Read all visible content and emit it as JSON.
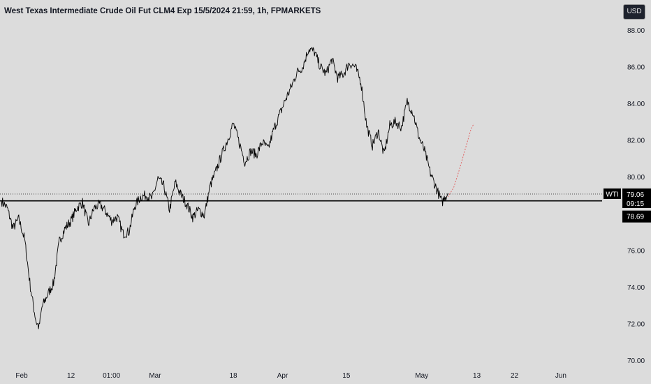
{
  "header": {
    "title": "West Texas Intermediate Crude Oil Fut CLM4 Exp 15/5/2024 21:59, 1h, FPMARKETS",
    "currency_button": "USD"
  },
  "colors": {
    "background": "#dcdcdc",
    "price_line": "#000000",
    "projection_line": "#e06666",
    "horizontal_level": "#000000",
    "label_bg": "#000000",
    "label_text": "#ffffff"
  },
  "chart_data": {
    "type": "line",
    "title": "West Texas Intermediate Crude Oil Fut CLM4 Exp 15/5/2024 21:59, 1h, FPMARKETS",
    "ylim": [
      70,
      88
    ],
    "y_ticks": [
      "70.00",
      "72.00",
      "74.00",
      "76.00",
      "78.00",
      "80.00",
      "82.00",
      "84.00",
      "86.00",
      "88.00"
    ],
    "x_ticks": [
      {
        "label": "Feb",
        "t": 7
      },
      {
        "label": "12",
        "t": 24
      },
      {
        "label": "01:00",
        "t": 38
      },
      {
        "label": "Mar",
        "t": 53
      },
      {
        "label": "18",
        "t": 80
      },
      {
        "label": "Apr",
        "t": 97
      },
      {
        "label": "15",
        "t": 119
      },
      {
        "label": "May",
        "t": 145
      },
      {
        "label": "13",
        "t": 164
      },
      {
        "label": "22",
        "t": 177
      },
      {
        "label": "Jun",
        "t": 193
      }
    ],
    "series": [
      {
        "type": "line",
        "points": [
          [
            0,
            78.7
          ],
          [
            2,
            78.3
          ],
          [
            4,
            77.2
          ],
          [
            6,
            77.7
          ],
          [
            8,
            76.6
          ],
          [
            9,
            75.3
          ],
          [
            10,
            74.0
          ],
          [
            11,
            73.0
          ],
          [
            12,
            72.1
          ],
          [
            13,
            71.8
          ],
          [
            14,
            72.9
          ],
          [
            16,
            73.6
          ],
          [
            18,
            74.2
          ],
          [
            20,
            76.5
          ],
          [
            22,
            77.2
          ],
          [
            24,
            77.6
          ],
          [
            26,
            78.3
          ],
          [
            28,
            78.6
          ],
          [
            30,
            77.4
          ],
          [
            32,
            78.3
          ],
          [
            34,
            78.5
          ],
          [
            36,
            78.1
          ],
          [
            38,
            77.6
          ],
          [
            40,
            77.8
          ],
          [
            42,
            76.9
          ],
          [
            44,
            77.0
          ],
          [
            46,
            78.4
          ],
          [
            48,
            78.9
          ],
          [
            50,
            79.0
          ],
          [
            52,
            78.8
          ],
          [
            54,
            79.9
          ],
          [
            56,
            79.5
          ],
          [
            58,
            78.2
          ],
          [
            60,
            79.7
          ],
          [
            62,
            79.0
          ],
          [
            64,
            78.5
          ],
          [
            66,
            77.8
          ],
          [
            68,
            78.2
          ],
          [
            70,
            77.9
          ],
          [
            72,
            79.5
          ],
          [
            74,
            80.3
          ],
          [
            76,
            81.2
          ],
          [
            78,
            82.0
          ],
          [
            80,
            82.9
          ],
          [
            82,
            81.9
          ],
          [
            84,
            80.8
          ],
          [
            86,
            81.4
          ],
          [
            88,
            81.2
          ],
          [
            90,
            81.9
          ],
          [
            92,
            81.5
          ],
          [
            94,
            82.6
          ],
          [
            96,
            83.4
          ],
          [
            98,
            84.2
          ],
          [
            100,
            84.9
          ],
          [
            102,
            85.7
          ],
          [
            104,
            86.0
          ],
          [
            106,
            87.0
          ],
          [
            108,
            86.8
          ],
          [
            110,
            86.0
          ],
          [
            112,
            85.6
          ],
          [
            114,
            86.4
          ],
          [
            116,
            85.4
          ],
          [
            118,
            85.6
          ],
          [
            120,
            86.2
          ],
          [
            122,
            86.0
          ],
          [
            124,
            85.2
          ],
          [
            125,
            84.0
          ],
          [
            126,
            82.8
          ],
          [
            128,
            81.7
          ],
          [
            130,
            82.5
          ],
          [
            132,
            81.2
          ],
          [
            134,
            82.8
          ],
          [
            136,
            83.0
          ],
          [
            138,
            82.7
          ],
          [
            140,
            84.1
          ],
          [
            142,
            83.5
          ],
          [
            144,
            82.2
          ],
          [
            146,
            81.4
          ],
          [
            148,
            80.2
          ],
          [
            150,
            79.4
          ],
          [
            151,
            79.0
          ],
          [
            152,
            78.6
          ],
          [
            153,
            78.9
          ],
          [
            154,
            79.1
          ]
        ]
      },
      {
        "type": "projection",
        "points": [
          [
            154,
            78.9
          ],
          [
            156,
            79.4
          ],
          [
            158,
            80.4
          ],
          [
            160,
            81.5
          ],
          [
            162,
            82.6
          ],
          [
            163,
            82.9
          ]
        ]
      }
    ],
    "level_line": {
      "value": 78.69
    },
    "current_price_line": {
      "value": 79.06
    },
    "labels": {
      "symbol": "WTI",
      "price": "79.06",
      "countdown": "09:15",
      "level": "78.69"
    }
  }
}
